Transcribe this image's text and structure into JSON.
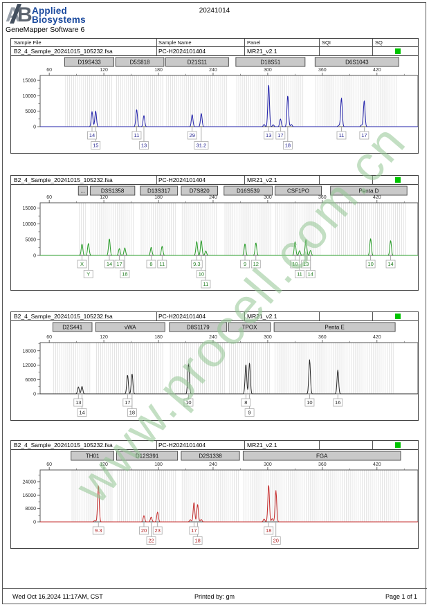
{
  "header": {
    "brand_line1": "Applied",
    "brand_line2": "Biosystems",
    "logo_mark_a": "A",
    "logo_mark_b": "B",
    "doc_title": "20241014",
    "app_title": "GeneMapper Software 6"
  },
  "table_header": {
    "col_sample_file": "Sample File",
    "col_sample_name": "Sample Name",
    "col_panel": "Panel",
    "col_sqi": "SQI",
    "col_sq": "SQ"
  },
  "watermark": "www.procell.com.cn",
  "colors": {
    "brand_blue": "#1b4a9e",
    "sq_green": "#00c400",
    "watermark_green": "rgba(146,196,146,0.55)"
  },
  "footer": {
    "date": "Wed Oct 16,2024 11:17AM, CST",
    "printed_by": "Printed by: gm",
    "page": "Page 1 of 1"
  },
  "panels": [
    {
      "sample_file": "B2_4_Sample_20241015_105232.fsa",
      "sample_name": "PC-H2024101404",
      "panel_name": "MR21_v2.1",
      "dye": "blue",
      "color": "#2222aa",
      "label_color": "#222290",
      "xticks": [
        60,
        120,
        180,
        240,
        300,
        360,
        420
      ],
      "yticks": [
        0,
        5000,
        10000,
        15000
      ],
      "ymax": 16600,
      "markers": [
        {
          "label": "D19S433",
          "range": [
            77,
            131
          ]
        },
        {
          "label": "D5S818",
          "range": [
            133,
            186
          ]
        },
        {
          "label": "D21S11",
          "range": [
            188,
            257
          ]
        },
        {
          "label": "D18S51",
          "range": [
            265,
            341
          ]
        },
        {
          "label": "D6S1043",
          "range": [
            352,
            444
          ]
        }
      ],
      "peaks": [
        [
          107,
          4900
        ],
        [
          111,
          5100
        ],
        [
          156,
          5600
        ],
        [
          164,
          3600
        ],
        [
          217,
          3900
        ],
        [
          227,
          4300
        ],
        [
          296,
          700
        ],
        [
          301,
          13700
        ],
        [
          306,
          600
        ],
        [
          314,
          2500
        ],
        [
          322,
          10100
        ],
        [
          326,
          700
        ],
        [
          378,
          400
        ],
        [
          381,
          9300
        ],
        [
          403,
          500
        ],
        [
          406,
          8500
        ]
      ],
      "alleles": [
        {
          "v": "14",
          "bp": 107,
          "row": 0
        },
        {
          "v": "15",
          "bp": 111,
          "row": 1
        },
        {
          "v": "11",
          "bp": 156,
          "row": 0
        },
        {
          "v": "13",
          "bp": 164,
          "row": 1
        },
        {
          "v": "29",
          "bp": 217,
          "row": 0
        },
        {
          "v": "31.2",
          "bp": 227,
          "row": 1
        },
        {
          "v": "13",
          "bp": 301,
          "row": 0
        },
        {
          "v": "17",
          "bp": 314,
          "row": 0
        },
        {
          "v": "18",
          "bp": 322,
          "row": 1
        },
        {
          "v": "11",
          "bp": 381,
          "row": 0
        },
        {
          "v": "17",
          "bp": 406,
          "row": 0
        }
      ]
    },
    {
      "sample_file": "B2_4_Sample_20241015_105232.fsa",
      "sample_name": "PC-H2024101404",
      "panel_name": "MR21_v2.1",
      "dye": "green",
      "color": "#2a9d2a",
      "label_color": "#1d7a1d",
      "xticks": [
        60,
        120,
        180,
        240,
        300,
        360,
        420
      ],
      "yticks": [
        0,
        5000,
        10000,
        15000
      ],
      "ymax": 16700,
      "markers": [
        {
          "label": "...",
          "range": [
            92,
            102
          ]
        },
        {
          "label": "D3S1358",
          "range": [
            105,
            154
          ]
        },
        {
          "label": "D13S317",
          "range": [
            160,
            201
          ]
        },
        {
          "label": "D7S820",
          "range": [
            205,
            245
          ]
        },
        {
          "label": "D16S539",
          "range": [
            252,
            305
          ]
        },
        {
          "label": "CSF1PO",
          "range": [
            308,
            359
          ]
        },
        {
          "label": "Penta D",
          "range": [
            369,
            453
          ]
        }
      ],
      "peaks": [
        [
          96,
          3600
        ],
        [
          103,
          3800
        ],
        [
          126,
          5300
        ],
        [
          137,
          2200
        ],
        [
          143,
          2400
        ],
        [
          172,
          2600
        ],
        [
          184,
          2900
        ],
        [
          222,
          4400
        ],
        [
          227,
          4700
        ],
        [
          232,
          1400
        ],
        [
          275,
          3700
        ],
        [
          287,
          4000
        ],
        [
          330,
          4300
        ],
        [
          335,
          1500
        ],
        [
          342,
          5100
        ],
        [
          347,
          1600
        ],
        [
          413,
          5300
        ],
        [
          435,
          4700
        ]
      ],
      "alleles": [
        {
          "v": "X",
          "bp": 96,
          "row": 0
        },
        {
          "v": "Y",
          "bp": 103,
          "row": 1
        },
        {
          "v": "14",
          "bp": 126,
          "row": 0
        },
        {
          "v": "17",
          "bp": 137,
          "row": 0
        },
        {
          "v": "18",
          "bp": 143,
          "row": 1
        },
        {
          "v": "8",
          "bp": 172,
          "row": 0
        },
        {
          "v": "11",
          "bp": 184,
          "row": 0
        },
        {
          "v": "9.3",
          "bp": 222,
          "row": 0
        },
        {
          "v": "10",
          "bp": 227,
          "row": 1
        },
        {
          "v": "11",
          "bp": 232,
          "row": 2
        },
        {
          "v": "9",
          "bp": 275,
          "row": 0
        },
        {
          "v": "12",
          "bp": 287,
          "row": 0
        },
        {
          "v": "10",
          "bp": 330,
          "row": 0
        },
        {
          "v": "11",
          "bp": 335,
          "row": 1
        },
        {
          "v": "13",
          "bp": 342,
          "row": 0
        },
        {
          "v": "14",
          "bp": 347,
          "row": 1
        },
        {
          "v": "10",
          "bp": 413,
          "row": 0
        },
        {
          "v": "14",
          "bp": 435,
          "row": 0
        }
      ]
    },
    {
      "sample_file": "B2_4_Sample_20241015_105232.fsa",
      "sample_name": "PC-H2024101404",
      "panel_name": "MR21_v2.1",
      "dye": "black",
      "color": "#2a2a2a",
      "label_color": "#1a1a1a",
      "xticks": [
        60,
        120,
        180,
        240,
        300,
        360,
        420
      ],
      "yticks": [
        0,
        6000,
        12000,
        18000
      ],
      "ymax": 21400,
      "markers": [
        {
          "label": "D2S441",
          "range": [
            64,
            107
          ]
        },
        {
          "label": "vWA",
          "range": [
            111,
            187
          ]
        },
        {
          "label": "D8S1179",
          "range": [
            192,
            255
          ]
        },
        {
          "label": "TPOX",
          "range": [
            257,
            303
          ]
        },
        {
          "label": "Penta E",
          "range": [
            307,
            440
          ]
        }
      ],
      "peaks": [
        [
          92,
          2900
        ],
        [
          96,
          3100
        ],
        [
          146,
          7900
        ],
        [
          151,
          8400
        ],
        [
          213,
          12900
        ],
        [
          276,
          12400
        ],
        [
          280,
          13000
        ],
        [
          346,
          14200
        ],
        [
          377,
          9900
        ]
      ],
      "alleles": [
        {
          "v": "13",
          "bp": 92,
          "row": 0
        },
        {
          "v": "14",
          "bp": 96,
          "row": 1
        },
        {
          "v": "17",
          "bp": 146,
          "row": 0
        },
        {
          "v": "18",
          "bp": 151,
          "row": 1
        },
        {
          "v": "10",
          "bp": 213,
          "row": 0
        },
        {
          "v": "8",
          "bp": 276,
          "row": 0
        },
        {
          "v": "9",
          "bp": 280,
          "row": 1
        },
        {
          "v": "10",
          "bp": 346,
          "row": 0
        },
        {
          "v": "16",
          "bp": 377,
          "row": 0
        }
      ]
    },
    {
      "sample_file": "B2_4_Sample_20241015_105232.fsa",
      "sample_name": "PC-H2024101404",
      "panel_name": "MR21_v2.1",
      "dye": "red",
      "color": "#c42b2b",
      "label_color": "#b02020",
      "xticks": [
        60,
        120,
        180,
        240,
        300,
        360,
        420
      ],
      "yticks": [
        0,
        8000,
        16000,
        24000
      ],
      "ymax": 31000,
      "markers": [
        {
          "label": "TH01",
          "range": [
            84,
            131
          ]
        },
        {
          "label": "D12S391",
          "range": [
            134,
            201
          ]
        },
        {
          "label": "D2S1338",
          "range": [
            205,
            269
          ]
        },
        {
          "label": "FGA",
          "range": [
            273,
            446
          ]
        }
      ],
      "peaks": [
        [
          110,
          800
        ],
        [
          114,
          21900
        ],
        [
          164,
          3700
        ],
        [
          172,
          2900
        ],
        [
          179,
          5900
        ],
        [
          215,
          1300
        ],
        [
          219,
          11700
        ],
        [
          223,
          10500
        ],
        [
          227,
          1400
        ],
        [
          296,
          1700
        ],
        [
          301,
          22100
        ],
        [
          305,
          1900
        ],
        [
          309,
          18700
        ]
      ],
      "alleles": [
        {
          "v": "9.3",
          "bp": 114,
          "row": 0
        },
        {
          "v": "20",
          "bp": 164,
          "row": 0
        },
        {
          "v": "22",
          "bp": 172,
          "row": 1
        },
        {
          "v": "23",
          "bp": 179,
          "row": 0
        },
        {
          "v": "17",
          "bp": 219,
          "row": 0
        },
        {
          "v": "18",
          "bp": 223,
          "row": 1
        },
        {
          "v": "18",
          "bp": 301,
          "row": 0
        },
        {
          "v": "20",
          "bp": 309,
          "row": 1
        }
      ]
    }
  ]
}
